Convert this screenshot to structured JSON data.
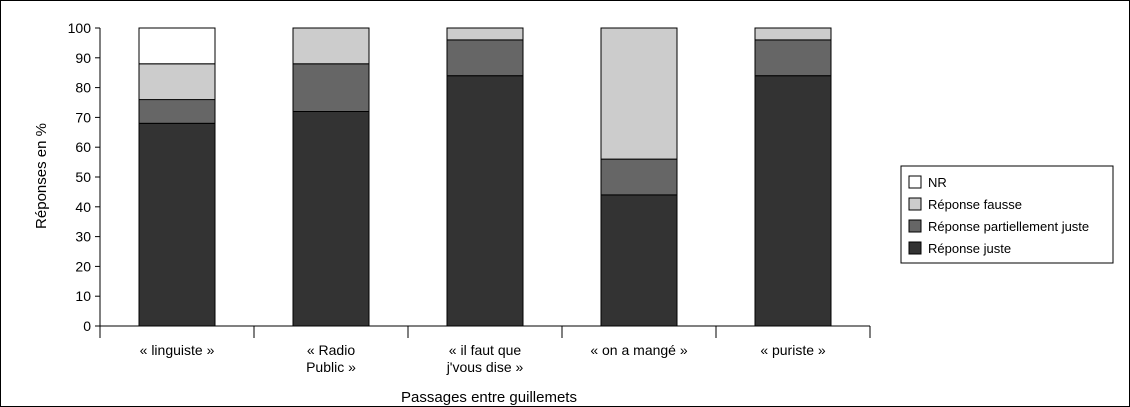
{
  "chart_data": {
    "type": "bar",
    "stacked": true,
    "xlabel": "Passages entre guillemets",
    "ylabel": "Réponses en %",
    "ylim": [
      0,
      100
    ],
    "yticks": [
      "0",
      "10",
      "20",
      "30",
      "40",
      "50",
      "60",
      "70",
      "80",
      "90",
      "100"
    ],
    "categories": [
      [
        "« linguiste »"
      ],
      [
        "« Radio",
        "Public »"
      ],
      [
        "« il faut que",
        "j'vous dise »"
      ],
      [
        "« on a mangé »"
      ],
      [
        "« puriste »"
      ]
    ],
    "series": [
      {
        "name": "Réponse juste",
        "color": "#333333",
        "values": [
          68,
          72,
          84,
          44,
          84
        ]
      },
      {
        "name": "Réponse partiellement juste",
        "color": "#666666",
        "values": [
          8,
          16,
          12,
          12,
          12
        ]
      },
      {
        "name": "Réponse fausse",
        "color": "#cccccc",
        "values": [
          12,
          12,
          4,
          44,
          4
        ]
      },
      {
        "name": "NR",
        "color": "#ffffff",
        "values": [
          12,
          0,
          0,
          0,
          0
        ]
      }
    ],
    "legend": {
      "position": "right",
      "order": [
        "NR",
        "Réponse fausse",
        "Réponse partiellement juste",
        "Réponse juste"
      ]
    },
    "grid": false
  }
}
